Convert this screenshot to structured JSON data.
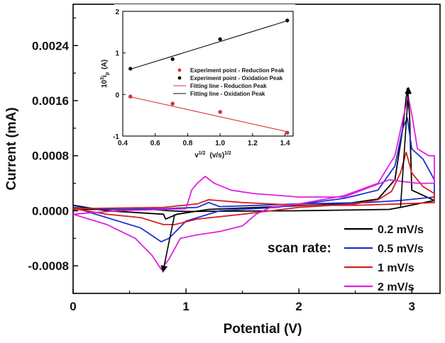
{
  "chart_data": [
    {
      "type": "line",
      "title": "",
      "xlabel": "Potential (V)",
      "ylabel": "Current (mA)",
      "xlim": [
        0,
        3.25
      ],
      "ylim": [
        -0.0012,
        0.003
      ],
      "xticks": [
        "0",
        "1",
        "2",
        "3"
      ],
      "yticks": [
        "-0.0008",
        "0.0000",
        "0.0008",
        "0.0016",
        "0.0024"
      ],
      "legend_title": "scan rate:",
      "legend_position": "bottom-right",
      "grid": false,
      "series": [
        {
          "name": "0.2 mV/s",
          "color": "#000000",
          "x": [
            0.0,
            0.3,
            0.8,
            0.82,
            0.92,
            1.2,
            1.8,
            2.4,
            2.7,
            2.85,
            2.92,
            2.96,
            2.98,
            3.0,
            3.2,
            3.2,
            2.9,
            2.8,
            2.0,
            1.0,
            0.85,
            0.7,
            0.3,
            0.0
          ],
          "y": [
            8e-05,
            0.0,
            -5e-05,
            -0.00012,
            -5e-05,
            2e-05,
            6e-05,
            0.0001,
            0.00017,
            0.00045,
            0.0012,
            0.00178,
            0.0014,
            0.0003,
            0.00015,
            0.00015,
            5e-05,
            2e-05,
            0.0,
            -1e-05,
            0.0,
            2e-05,
            2e-05,
            2e-05
          ]
        },
        {
          "name": "0.5 mV/s",
          "color": "#1f2fd6",
          "x": [
            0.0,
            0.3,
            0.6,
            0.78,
            0.85,
            1.0,
            1.3,
            1.8,
            2.4,
            2.7,
            2.85,
            2.92,
            2.96,
            3.0,
            3.1,
            3.2,
            3.2,
            2.9,
            2.6,
            2.0,
            1.3,
            1.2,
            1.1,
            0.8,
            0.3,
            0.0
          ],
          "y": [
            5e-05,
            -0.0001,
            -0.00025,
            -0.00045,
            -0.0004,
            -0.00015,
            0.0,
            5e-05,
            0.00018,
            0.0003,
            0.00065,
            0.0012,
            0.00135,
            0.0009,
            0.00075,
            0.00045,
            0.0002,
            0.00015,
            0.00012,
            0.0001,
            6e-05,
            0.00012,
            5e-05,
            3e-05,
            2e-05,
            5e-05
          ]
        },
        {
          "name": "1 mV/s",
          "color": "#d62020",
          "x": [
            0.0,
            0.3,
            0.6,
            0.8,
            0.9,
            1.1,
            1.5,
            2.0,
            2.5,
            2.7,
            2.82,
            2.9,
            2.95,
            3.0,
            3.1,
            3.2,
            3.2,
            2.9,
            2.5,
            2.0,
            1.5,
            1.2,
            1.1,
            0.8,
            0.4,
            0.0
          ],
          "y": [
            3e-05,
            -5e-05,
            -0.0001,
            -0.0002,
            -0.0002,
            -0.00012,
            -5e-05,
            5e-05,
            0.0001,
            0.00016,
            0.00028,
            0.00055,
            0.00085,
            0.00055,
            0.00035,
            0.00025,
            0.00012,
            0.0001,
            8e-05,
            8e-05,
            0.00012,
            0.00016,
            0.0001,
            5e-05,
            4e-05,
            3e-05
          ]
        },
        {
          "name": "2 mV/s",
          "color": "#dd22dd",
          "x": [
            0.0,
            0.3,
            0.55,
            0.7,
            0.78,
            0.85,
            0.95,
            1.1,
            1.3,
            1.5,
            1.62,
            1.75,
            2.0,
            2.4,
            2.7,
            2.85,
            2.93,
            2.97,
            3.0,
            3.05,
            3.15,
            3.2,
            3.2,
            3.05,
            2.8,
            2.4,
            2.0,
            1.6,
            1.4,
            1.25,
            1.17,
            1.1,
            1.05,
            1.0,
            0.8,
            0.4,
            0.0
          ],
          "y": [
            -5e-05,
            -0.0002,
            -0.0004,
            -0.00065,
            -0.00085,
            -0.0007,
            -0.0004,
            -0.00035,
            -0.0003,
            -0.00022,
            -5e-05,
            5e-05,
            0.0001,
            0.00022,
            0.0004,
            0.0008,
            0.0014,
            0.00165,
            0.0014,
            0.0009,
            0.0008,
            0.0008,
            0.0004,
            0.0004,
            0.00045,
            0.0002,
            0.0002,
            0.00025,
            0.0003,
            0.0004,
            0.0005,
            0.0004,
            0.0003,
            3e-05,
            2e-05,
            0.0,
            -5e-05
          ]
        }
      ],
      "annotations": [
        {
          "type": "arrow",
          "from": [
            0.9,
            -5e-05
          ],
          "to": [
            0.8,
            -0.00085
          ]
        },
        {
          "type": "arrow",
          "from": [
            2.9,
            5e-05
          ],
          "to": [
            2.97,
            0.00175
          ]
        }
      ]
    },
    {
      "type": "scatter",
      "title": "",
      "xlabel": "v^1/2 (v/s)^1/2",
      "xlabel_parts": {
        "v": "v",
        "v_sup": "1/2",
        "unit": "(v/s)",
        "unit_sup": "1/2"
      },
      "ylabel": "10^3 i_p (A)",
      "ylabel_parts": {
        "pre": "10",
        "pre_sup": "3",
        "i": "i",
        "i_sub": "p",
        "unit": "(A)"
      },
      "xlim": [
        0.4,
        1.45
      ],
      "ylim": [
        -1,
        2
      ],
      "xticks": [
        "0.4",
        "0.6",
        "0.8",
        "1.0",
        "1.2",
        "1.4"
      ],
      "yticks": [
        "-1",
        "0",
        "1",
        "2"
      ],
      "grid": false,
      "legend_position": "center-right",
      "series": [
        {
          "name": "Experiment point - Reduction Peak",
          "color": "#e03030",
          "marker": "circle",
          "x": [
            0.447,
            0.707,
            1.0,
            1.414
          ],
          "y": [
            -0.05,
            -0.22,
            -0.42,
            -0.92
          ]
        },
        {
          "name": "Experiment point - Oxidation Peak",
          "color": "#111111",
          "marker": "circle",
          "x": [
            0.447,
            0.707,
            1.0,
            1.414
          ],
          "y": [
            0.62,
            0.85,
            1.33,
            1.78
          ]
        },
        {
          "name": "Fitting line - Reduction Peak",
          "color": "#e03030",
          "marker": "line",
          "x": [
            0.44,
            1.42
          ],
          "y": [
            -0.05,
            -0.9
          ]
        },
        {
          "name": "Fitting line - Oxidation Peak",
          "color": "#111111",
          "marker": "line",
          "x": [
            0.44,
            1.42
          ],
          "y": [
            0.6,
            1.78
          ]
        }
      ]
    }
  ]
}
